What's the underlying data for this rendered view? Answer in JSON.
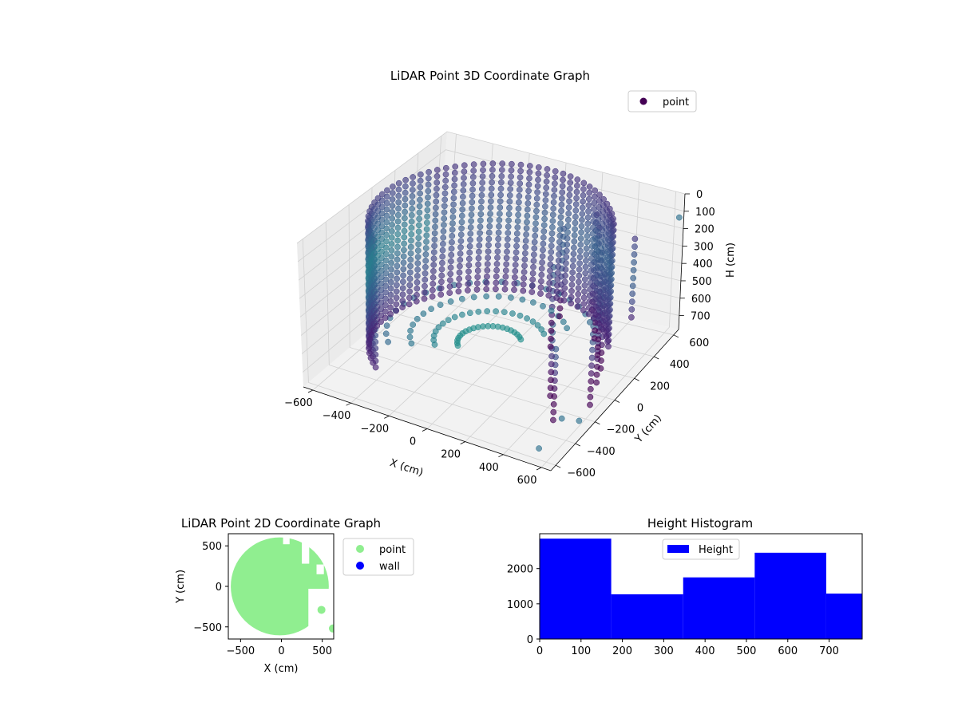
{
  "chart_data": [
    {
      "type": "scatter",
      "projection": "3d",
      "title": "LiDAR Point 3D Coordinate Graph",
      "xlabel": "X (cm)",
      "ylabel": "Y (cm)",
      "zlabel": "H (cm)",
      "xlim": [
        -650,
        650
      ],
      "ylim": [
        -650,
        650
      ],
      "zlim": [
        780,
        0
      ],
      "z_inverted": true,
      "xticks": [
        -600,
        -400,
        -200,
        0,
        200,
        400,
        600
      ],
      "yticks": [
        -600,
        -400,
        -200,
        0,
        200,
        400,
        600
      ],
      "zticks": [
        0,
        100,
        200,
        300,
        400,
        500,
        600,
        700
      ],
      "colormap": "viridis",
      "legend": {
        "entries": [
          "point"
        ],
        "placement": "top-right",
        "colors": [
          "#440154"
        ]
      },
      "series": [
        {
          "name": "point",
          "shape": "dense vertical columns tracing an arc from x≈-600 through the back wall to x≈0, plus sparse columns on the right side",
          "dense_arc": {
            "center": [
              -20,
              0
            ],
            "radius": 560,
            "theta_start_deg": 30,
            "theta_end_deg": 230,
            "z_top": 0,
            "z_bottom": 700
          },
          "sparse_columns": [
            {
              "x": 300,
              "y": 420,
              "z_top": 80,
              "z_bottom": 620
            },
            {
              "x": 380,
              "y": 300,
              "z_top": 60,
              "z_bottom": 700
            },
            {
              "x": 450,
              "y": 200,
              "z_top": 120,
              "z_bottom": 720
            },
            {
              "x": 520,
              "y": 100,
              "z_top": 160,
              "z_bottom": 700
            },
            {
              "x": 560,
              "y": -20,
              "z_top": 200,
              "z_bottom": 720
            },
            {
              "x": 580,
              "y": -120,
              "z_top": 260,
              "z_bottom": 760
            },
            {
              "x": 400,
              "y": -180,
              "z_top": 320,
              "z_bottom": 760
            },
            {
              "x": 480,
              "y": -300,
              "z_top": 360,
              "z_bottom": 780
            },
            {
              "x": 200,
              "y": 200,
              "z_top": 280,
              "z_bottom": 740
            },
            {
              "x": 150,
              "y": 380,
              "z_top": 180,
              "z_bottom": 680
            },
            {
              "x": 560,
              "y": 320,
              "z_top": 80,
              "z_bottom": 560
            }
          ],
          "outliers": [
            {
              "x": 640,
              "y": 620,
              "z": 120
            },
            {
              "x": 500,
              "y": -250,
              "z": 780
            },
            {
              "x": 520,
              "y": -520,
              "z": 780
            },
            {
              "x": 630,
              "y": -330,
              "z": 700
            }
          ]
        }
      ]
    },
    {
      "type": "scatter",
      "title": "LiDAR Point 2D Coordinate Graph",
      "xlabel": "X (cm)",
      "ylabel": "Y (cm)",
      "xlim": [
        -650,
        640
      ],
      "ylim": [
        -650,
        650
      ],
      "xticks": [
        -500,
        0,
        500
      ],
      "yticks": [
        -500,
        0,
        500
      ],
      "legend": {
        "entries": [
          "point",
          "wall"
        ],
        "placement": "outside-right",
        "colors": [
          "#90ee90",
          "#0000ff"
        ]
      },
      "series": [
        {
          "name": "point",
          "color": "#90ee90",
          "region": "filled disk center [-20, 0] radius 600, clipped to axes, with a notch at lower right"
        },
        {
          "name": "wall",
          "color": "#0000ff",
          "points": []
        }
      ],
      "isolated_points": [
        {
          "x": 490,
          "y": -290
        },
        {
          "x": 630,
          "y": -520
        }
      ]
    },
    {
      "type": "bar",
      "subtype": "histogram",
      "title": "Height Histogram",
      "xlabel": "",
      "ylabel": "",
      "xlim": [
        0,
        780
      ],
      "ylim": [
        0,
        2990
      ],
      "xticks": [
        0,
        100,
        200,
        300,
        400,
        500,
        600,
        700
      ],
      "yticks": [
        0,
        1000,
        2000
      ],
      "color": "#0000ff",
      "legend": {
        "entries": [
          "Height"
        ],
        "placement": "upper-center",
        "colors": [
          "#0000ff"
        ]
      },
      "bins": [
        {
          "start": 0,
          "end": 173,
          "count": 2850
        },
        {
          "start": 173,
          "end": 347,
          "count": 1270
        },
        {
          "start": 347,
          "end": 520,
          "count": 1750
        },
        {
          "start": 520,
          "end": 693,
          "count": 2450
        },
        {
          "start": 693,
          "end": 780,
          "count": 1290
        }
      ]
    }
  ]
}
